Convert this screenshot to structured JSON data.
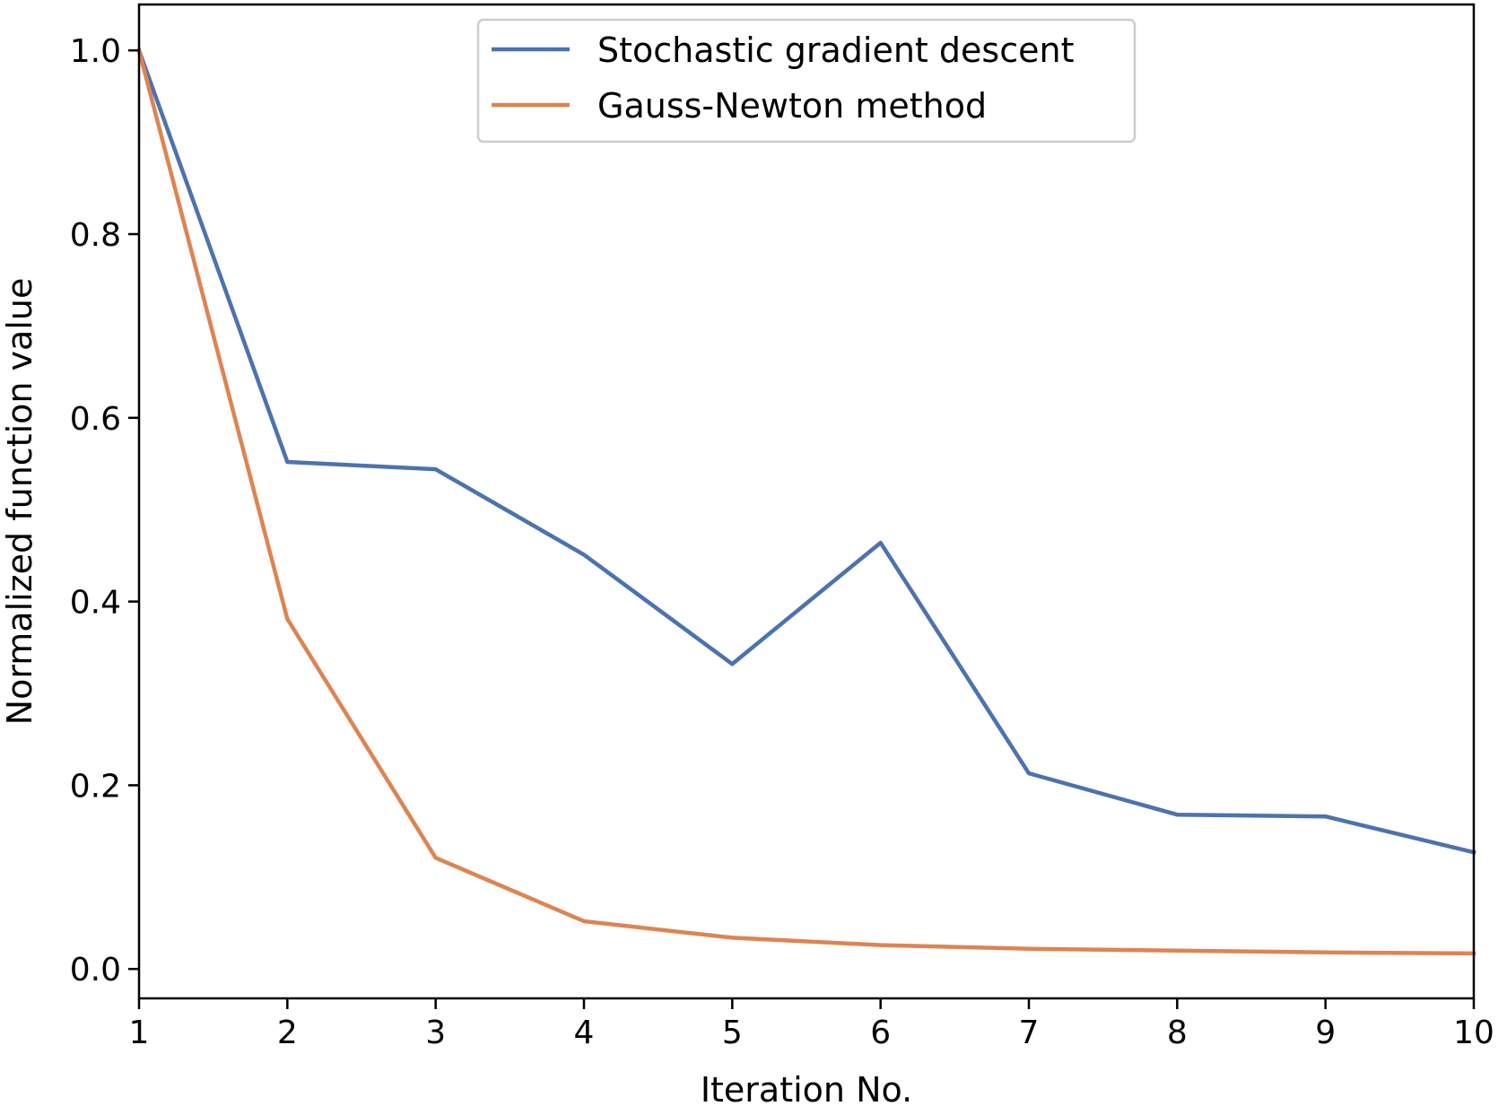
{
  "chart_data": {
    "type": "line",
    "title": "",
    "xlabel": "Iteration No.",
    "ylabel": "Normalized function value",
    "x": [
      1,
      2,
      3,
      4,
      5,
      6,
      7,
      8,
      9,
      10
    ],
    "xlim": [
      1,
      10
    ],
    "ylim": [
      -0.032,
      1.05
    ],
    "x_ticks": [
      1,
      2,
      3,
      4,
      5,
      6,
      7,
      8,
      9,
      10
    ],
    "x_tick_labels": [
      "1",
      "2",
      "3",
      "4",
      "5",
      "6",
      "7",
      "8",
      "9",
      "10"
    ],
    "y_ticks": [
      0.0,
      0.2,
      0.4,
      0.6,
      0.8,
      1.0
    ],
    "y_tick_labels": [
      "0.0",
      "0.2",
      "0.4",
      "0.6",
      "0.8",
      "1.0"
    ],
    "grid": false,
    "legend_position": "top-center",
    "series": [
      {
        "name": "Stochastic gradient descent",
        "color": "#4c72b0",
        "values": [
          1.0,
          0.552,
          0.544,
          0.451,
          0.332,
          0.464,
          0.213,
          0.168,
          0.166,
          0.127
        ]
      },
      {
        "name": "Gauss-Newton method",
        "color": "#dd8452",
        "values": [
          1.0,
          0.381,
          0.121,
          0.052,
          0.034,
          0.026,
          0.022,
          0.02,
          0.018,
          0.017
        ]
      }
    ]
  }
}
